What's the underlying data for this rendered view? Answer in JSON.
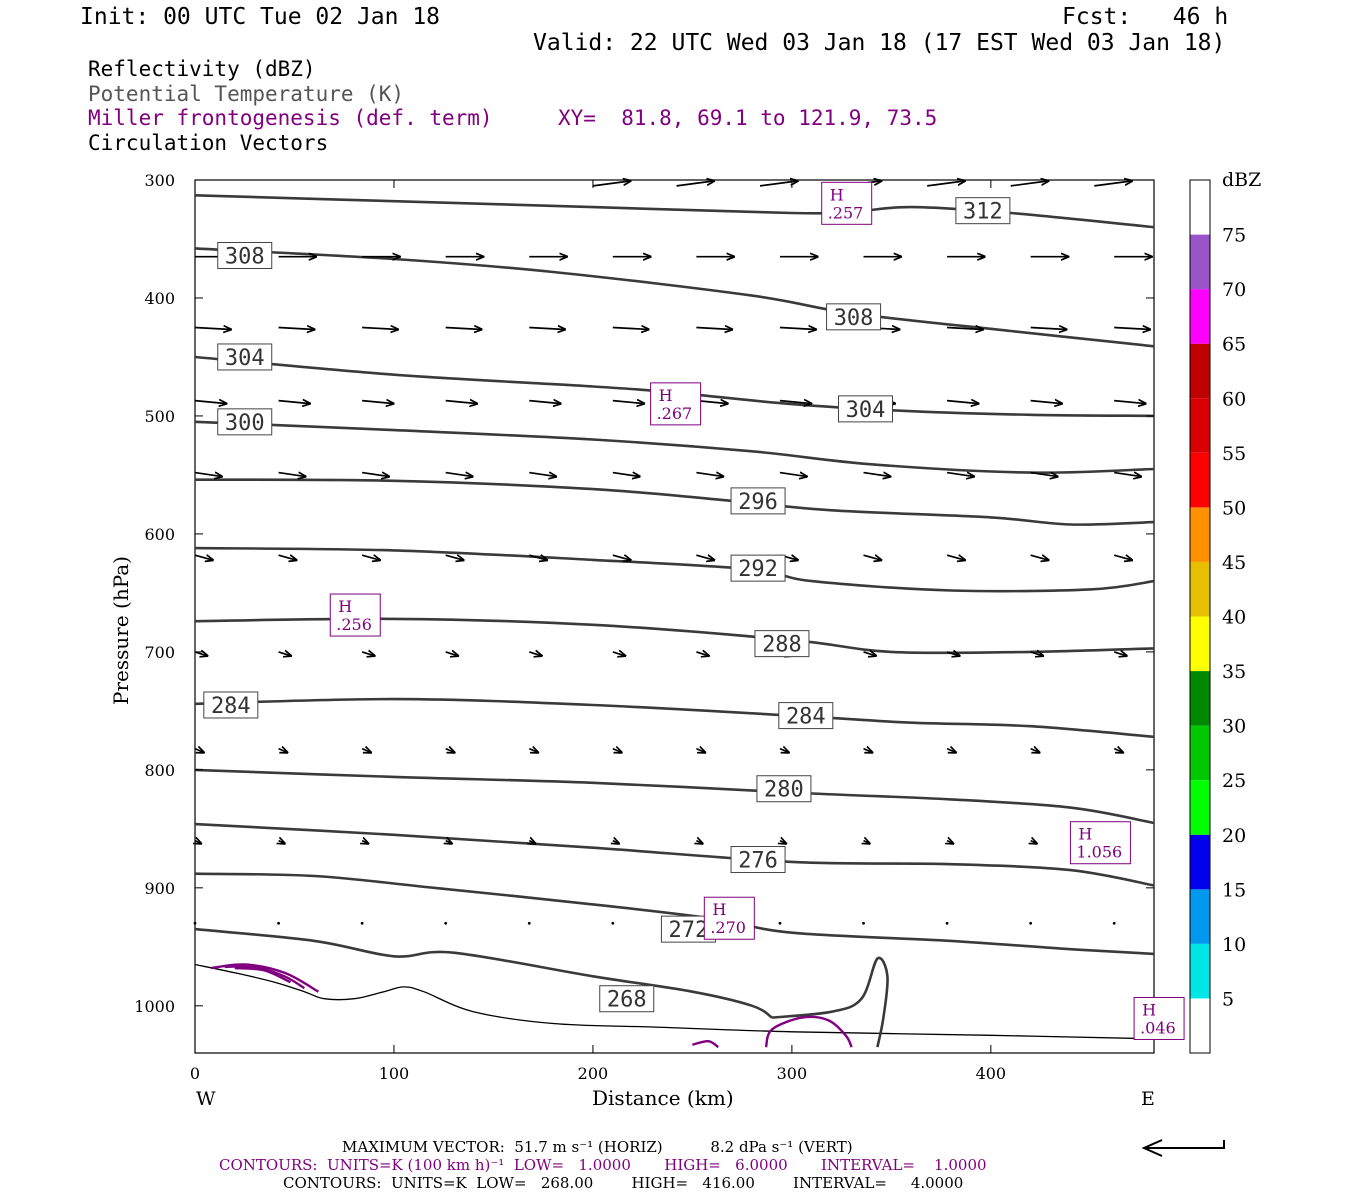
{
  "header": {
    "init": "Init: 00 UTC Tue 02 Jan 18",
    "fcst": "Fcst:   46 h",
    "valid": "Valid: 22 UTC Wed 03 Jan 18 (17 EST Wed 03 Jan 18)"
  },
  "fields": {
    "reflectivity": "Reflectivity (dBZ)",
    "theta": "Potential Temperature (K)",
    "miller": "Miller frontogenesis (def. term)",
    "xy": "XY=  81.8, 69.1 to 121.9, 73.5",
    "vectors": "Circulation Vectors"
  },
  "colors": {
    "theta": "#3a3a3a",
    "miller": "#800080",
    "terrain": "#000000"
  },
  "colorbar": {
    "unit": "dBZ",
    "levels": [
      "5",
      "10",
      "15",
      "20",
      "25",
      "30",
      "35",
      "40",
      "45",
      "50",
      "55",
      "60",
      "65",
      "70",
      "75"
    ],
    "colors": [
      "#ffffff",
      "#00e6e6",
      "#0099ee",
      "#0000ee",
      "#00ff00",
      "#00c800",
      "#008800",
      "#ffff00",
      "#e6bf00",
      "#ff9000",
      "#ff0000",
      "#d80000",
      "#c00000",
      "#ff00ff",
      "#9955c9",
      "#ffffff"
    ]
  },
  "footer": {
    "vector_line": "MAXIMUM VECTOR:  51.7 m s⁻¹ (HORIZ)          8.2 dPa s⁻¹ (VERT)",
    "miller_line": "CONTOURS:  UNITS=K (100 km h)⁻¹  LOW=   1.0000       HIGH=   6.0000       INTERVAL=    1.0000",
    "theta_line": "CONTOURS:  UNITS=K  LOW=   268.00        HIGH=   416.00        INTERVAL=     4.0000"
  },
  "chart_data": {
    "type": "contour",
    "xlabel": "Distance (km)",
    "ylabel": "Pressure (hPa)",
    "xlim": [
      0,
      482
    ],
    "ylim": [
      1040,
      300
    ],
    "x_ticks": [
      0,
      100,
      200,
      300,
      400
    ],
    "y_ticks": [
      300,
      400,
      500,
      600,
      700,
      800,
      900,
      1000
    ],
    "x_end_labels": {
      "left": "W",
      "right": "E"
    },
    "theta_contours": [
      {
        "level": 312,
        "points": [
          [
            0,
            313
          ],
          [
            100,
            318
          ],
          [
            200,
            323
          ],
          [
            300,
            328
          ],
          [
            330,
            327
          ],
          [
            360,
            323
          ],
          [
            410,
            328
          ],
          [
            482,
            340
          ]
        ]
      },
      {
        "level": 308,
        "points": [
          [
            0,
            358
          ],
          [
            100,
            367
          ],
          [
            180,
            378
          ],
          [
            280,
            398
          ],
          [
            330,
            413
          ],
          [
            410,
            428
          ],
          [
            482,
            441
          ]
        ]
      },
      {
        "level": 304,
        "points": [
          [
            0,
            450
          ],
          [
            100,
            465
          ],
          [
            200,
            475
          ],
          [
            240,
            480
          ],
          [
            300,
            490
          ],
          [
            360,
            496
          ],
          [
            420,
            499
          ],
          [
            482,
            500
          ]
        ]
      },
      {
        "level": 300,
        "points": [
          [
            0,
            505
          ],
          [
            100,
            512
          ],
          [
            200,
            520
          ],
          [
            280,
            530
          ],
          [
            340,
            541
          ],
          [
            420,
            548
          ],
          [
            482,
            545
          ]
        ]
      },
      {
        "level": 296,
        "points": [
          [
            0,
            554
          ],
          [
            100,
            555
          ],
          [
            200,
            562
          ],
          [
            270,
            572
          ],
          [
            320,
            580
          ],
          [
            400,
            586
          ],
          [
            440,
            592
          ],
          [
            482,
            590
          ]
        ]
      },
      {
        "level": 292,
        "points": [
          [
            0,
            612
          ],
          [
            100,
            614
          ],
          [
            200,
            622
          ],
          [
            280,
            630
          ],
          [
            310,
            640
          ],
          [
            380,
            648
          ],
          [
            450,
            647
          ],
          [
            482,
            640
          ]
        ]
      },
      {
        "level": 288,
        "points": [
          [
            0,
            674
          ],
          [
            100,
            672
          ],
          [
            200,
            677
          ],
          [
            300,
            690
          ],
          [
            350,
            700
          ],
          [
            420,
            700
          ],
          [
            482,
            697
          ]
        ]
      },
      {
        "level": 284,
        "points": [
          [
            0,
            744
          ],
          [
            100,
            740
          ],
          [
            200,
            745
          ],
          [
            310,
            755
          ],
          [
            360,
            760
          ],
          [
            420,
            763
          ],
          [
            482,
            772
          ]
        ]
      },
      {
        "level": 280,
        "points": [
          [
            0,
            800
          ],
          [
            100,
            806
          ],
          [
            200,
            811
          ],
          [
            310,
            820
          ],
          [
            380,
            825
          ],
          [
            440,
            832
          ],
          [
            482,
            845
          ]
        ]
      },
      {
        "level": 276,
        "points": [
          [
            0,
            846
          ],
          [
            100,
            855
          ],
          [
            200,
            866
          ],
          [
            300,
            878
          ],
          [
            380,
            880
          ],
          [
            440,
            885
          ],
          [
            482,
            898
          ]
        ]
      },
      {
        "level": 272,
        "points": [
          [
            0,
            888
          ],
          [
            60,
            890
          ],
          [
            120,
            900
          ],
          [
            200,
            914
          ],
          [
            260,
            926
          ],
          [
            300,
            938
          ],
          [
            380,
            945
          ],
          [
            440,
            952
          ],
          [
            482,
            956
          ]
        ]
      },
      {
        "level": 268,
        "points": [
          [
            0,
            935
          ],
          [
            60,
            945
          ],
          [
            100,
            958
          ],
          [
            130,
            955
          ],
          [
            200,
            975
          ],
          [
            250,
            988
          ],
          [
            280,
            1000
          ],
          [
            290,
            1010
          ]
        ]
      },
      {
        "level": 268,
        "points": [
          [
            290,
            1010
          ],
          [
            320,
            1005
          ],
          [
            335,
            994
          ],
          [
            343,
            960
          ],
          [
            348,
            975
          ],
          [
            346,
            1010
          ],
          [
            343,
            1035
          ]
        ]
      }
    ],
    "theta_labels": [
      {
        "text": "312",
        "x": 330,
        "y": 310,
        "label_x": 396,
        "label_p": 326
      },
      {
        "text": "308",
        "x": 25,
        "y": 364
      },
      {
        "text": "308",
        "x": 331,
        "y": 416
      },
      {
        "text": "304",
        "x": 25,
        "y": 450
      },
      {
        "text": "304",
        "x": 337,
        "y": 494
      },
      {
        "text": "300",
        "x": 25,
        "y": 505
      },
      {
        "text": "296",
        "x": 283,
        "y": 572
      },
      {
        "text": "292",
        "x": 283,
        "y": 629
      },
      {
        "text": "288",
        "x": 295,
        "y": 693
      },
      {
        "text": "284",
        "x": 18,
        "y": 745
      },
      {
        "text": "284",
        "x": 307,
        "y": 754
      },
      {
        "text": "280",
        "x": 296,
        "y": 816
      },
      {
        "text": "276",
        "x": 283,
        "y": 876
      },
      {
        "text": "272",
        "x": 248,
        "y": 935
      },
      {
        "text": "268",
        "x": 217,
        "y": 994
      }
    ],
    "miller_maxima": [
      {
        "text": "H",
        "value": ".257",
        "x": 318,
        "y": 324
      },
      {
        "text": "H",
        "value": ".267",
        "x": 232,
        "y": 494
      },
      {
        "text": "H",
        "value": ".256",
        "x": 71,
        "y": 673
      },
      {
        "text": "H",
        "value": "1.056",
        "x": 443,
        "y": 866
      },
      {
        "text": "H",
        "value": ".270",
        "x": 259,
        "y": 930
      },
      {
        "text": "H",
        "value": ".046",
        "x": 475,
        "y": 1015
      }
    ],
    "miller_contours": [
      {
        "level": 1,
        "points": [
          [
            8,
            968
          ],
          [
            25,
            965
          ],
          [
            45,
            972
          ],
          [
            62,
            988
          ]
        ]
      },
      {
        "level": 2,
        "points": [
          [
            15,
            967
          ],
          [
            30,
            967
          ],
          [
            45,
            975
          ],
          [
            55,
            985
          ]
        ]
      },
      {
        "level": 3,
        "points": [
          [
            20,
            968
          ],
          [
            35,
            970
          ],
          [
            48,
            980
          ]
        ]
      },
      {
        "level": 1,
        "points": [
          [
            287,
            1035
          ],
          [
            290,
            1020
          ],
          [
            305,
            1010
          ],
          [
            318,
            1012
          ],
          [
            327,
            1025
          ],
          [
            330,
            1035
          ]
        ]
      },
      {
        "level": 1,
        "points": [
          [
            250,
            1033
          ],
          [
            258,
            1030
          ],
          [
            263,
            1035
          ]
        ]
      }
    ],
    "terrain": [
      [
        0,
        965
      ],
      [
        20,
        972
      ],
      [
        40,
        980
      ],
      [
        55,
        988
      ],
      [
        65,
        994
      ],
      [
        80,
        994
      ],
      [
        95,
        988
      ],
      [
        105,
        984
      ],
      [
        115,
        988
      ],
      [
        140,
        1005
      ],
      [
        180,
        1015
      ],
      [
        230,
        1018
      ],
      [
        300,
        1022
      ],
      [
        400,
        1025
      ],
      [
        482,
        1028
      ]
    ],
    "vector_rows": [
      {
        "p": 305,
        "x_start": 200,
        "x_end": 482,
        "step": 42,
        "u": 42,
        "w": -5
      },
      {
        "p": 365,
        "x_start": 0,
        "x_end": 482,
        "step": 42,
        "u": 42,
        "w": 0
      },
      {
        "p": 425,
        "x_start": 0,
        "x_end": 482,
        "step": 42,
        "u": 40,
        "w": 2
      },
      {
        "p": 487,
        "x_start": 0,
        "x_end": 482,
        "step": 42,
        "u": 35,
        "w": 3
      },
      {
        "p": 548,
        "x_start": 0,
        "x_end": 482,
        "step": 42,
        "u": 30,
        "w": 4
      },
      {
        "p": 618,
        "x_start": 0,
        "x_end": 482,
        "step": 42,
        "u": 20,
        "w": 5
      },
      {
        "p": 700,
        "x_start": 0,
        "x_end": 482,
        "step": 42,
        "u": 14,
        "w": 4
      },
      {
        "p": 782,
        "x_start": 0,
        "x_end": 482,
        "step": 42,
        "u": 10,
        "w": 4
      },
      {
        "p": 860,
        "x_start": 0,
        "x_end": 482,
        "step": 42,
        "u": 7,
        "w": 3
      },
      {
        "p": 930,
        "x_start": 0,
        "x_end": 482,
        "step": 42,
        "u": 3,
        "w": 2
      }
    ],
    "max_vector_reference": "HORIZ 51.7 m s-1"
  }
}
